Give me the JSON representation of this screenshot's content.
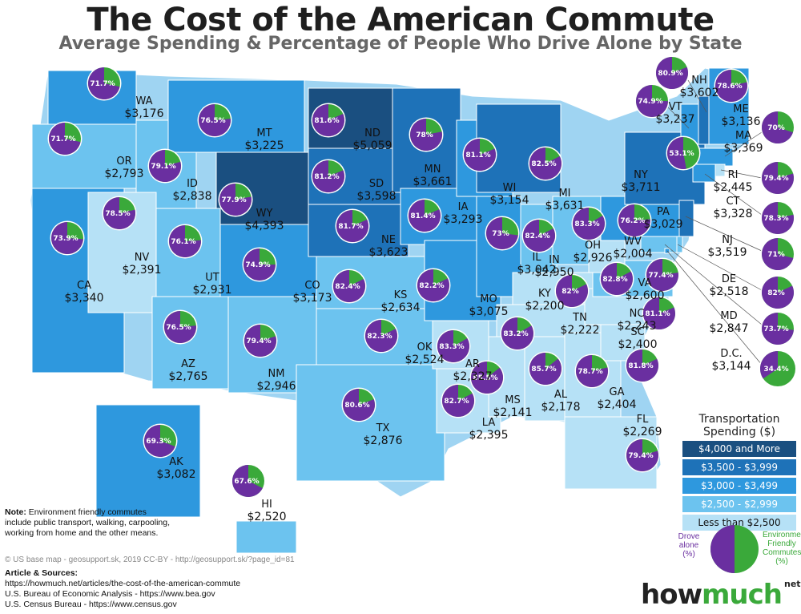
{
  "title": "The Cost of the American Commute",
  "subtitle": "Average Spending & Percentage of People Who Drive Alone by State",
  "colors": {
    "tier1": "#1a4f80",
    "tier2": "#1e72b8",
    "tier3": "#2e98de",
    "tier4": "#6cc3ef",
    "tier5": "#b6e1f6",
    "drove_alone": "#6a2fa0",
    "env_friendly": "#3aa93a"
  },
  "legend": {
    "title_line1": "Transportation",
    "title_line2": "Spending ($)",
    "tiers": [
      {
        "label": "$4,000 and More",
        "color": "#1a4f80",
        "text_color": "#ffffff"
      },
      {
        "label": "$3,500 - $3,999",
        "color": "#1e72b8",
        "text_color": "#ffffff"
      },
      {
        "label": "$3,000 - $3,499",
        "color": "#2e98de",
        "text_color": "#ffffff"
      },
      {
        "label": "$2,500 - $2,999",
        "color": "#6cc3ef",
        "text_color": "#ffffff"
      },
      {
        "label": "Less than $2,500",
        "color": "#b6e1f6",
        "text_color": "#111111"
      }
    ],
    "pie_left_line1": "Drove",
    "pie_left_line2": "alone",
    "pie_left_line3": "(%)",
    "pie_right_line1": "Environment",
    "pie_right_line2": "Friendly",
    "pie_right_line3": "Commutes",
    "pie_right_line4": "(%)"
  },
  "states": [
    {
      "abbr": "WA",
      "spending": "$3,176",
      "drove_alone": 71.7,
      "tier": 3
    },
    {
      "abbr": "OR",
      "spending": "$2,793",
      "drove_alone": 71.7,
      "tier": 4
    },
    {
      "abbr": "CA",
      "spending": "$3,340",
      "drove_alone": 73.9,
      "tier": 3
    },
    {
      "abbr": "ID",
      "spending": "$2,838",
      "drove_alone": 79.1,
      "tier": 4
    },
    {
      "abbr": "NV",
      "spending": "$2,391",
      "drove_alone": 78.5,
      "tier": 5
    },
    {
      "abbr": "MT",
      "spending": "$3,225",
      "drove_alone": 76.5,
      "tier": 3
    },
    {
      "abbr": "WY",
      "spending": "$4,393",
      "drove_alone": 77.9,
      "tier": 1
    },
    {
      "abbr": "UT",
      "spending": "$2,931",
      "drove_alone": 76.1,
      "tier": 4
    },
    {
      "abbr": "CO",
      "spending": "$3,173",
      "drove_alone": 74.9,
      "tier": 3
    },
    {
      "abbr": "AZ",
      "spending": "$2,765",
      "drove_alone": 76.5,
      "tier": 4
    },
    {
      "abbr": "NM",
      "spending": "$2,946",
      "drove_alone": 79.4,
      "tier": 4
    },
    {
      "abbr": "ND",
      "spending": "$5,059",
      "drove_alone": 81.6,
      "tier": 1
    },
    {
      "abbr": "SD",
      "spending": "$3,598",
      "drove_alone": 81.2,
      "tier": 2
    },
    {
      "abbr": "NE",
      "spending": "$3,623",
      "drove_alone": 81.7,
      "tier": 2
    },
    {
      "abbr": "KS",
      "spending": "$2,634",
      "drove_alone": 82.4,
      "tier": 4
    },
    {
      "abbr": "OK",
      "spending": "$2,524",
      "drove_alone": 82.3,
      "tier": 4
    },
    {
      "abbr": "TX",
      "spending": "$2,876",
      "drove_alone": 80.6,
      "tier": 4
    },
    {
      "abbr": "MN",
      "spending": "$3,661",
      "drove_alone": 78,
      "tier": 2
    },
    {
      "abbr": "IA",
      "spending": "$3,293",
      "drove_alone": 81.4,
      "tier": 3
    },
    {
      "abbr": "MO",
      "spending": "$3,075",
      "drove_alone": 82.2,
      "tier": 3
    },
    {
      "abbr": "AR",
      "spending": "$2,327",
      "drove_alone": 83.3,
      "tier": 5
    },
    {
      "abbr": "LA",
      "spending": "$2,395",
      "drove_alone": 82.7,
      "tier": 5
    },
    {
      "abbr": "WI",
      "spending": "$3,154",
      "drove_alone": 81.1,
      "tier": 3
    },
    {
      "abbr": "IL",
      "spending": "$3,042",
      "drove_alone": 73,
      "tier": 3
    },
    {
      "abbr": "MI",
      "spending": "$3,631",
      "drove_alone": 82.5,
      "tier": 2
    },
    {
      "abbr": "IN",
      "spending": "$2,950",
      "drove_alone": 82.4,
      "tier": 4
    },
    {
      "abbr": "OH",
      "spending": "$2,926",
      "drove_alone": 83.3,
      "tier": 4
    },
    {
      "abbr": "KY",
      "spending": "$2,200",
      "drove_alone": 82,
      "tier": 5
    },
    {
      "abbr": "TN",
      "spending": "$2,222",
      "drove_alone": 83.2,
      "tier": 5
    },
    {
      "abbr": "MS",
      "spending": "$2,141",
      "drove_alone": 85.5,
      "tier": 5
    },
    {
      "abbr": "AL",
      "spending": "$2,178",
      "drove_alone": 85.7,
      "tier": 5
    },
    {
      "abbr": "GA",
      "spending": "$2,404",
      "drove_alone": 78.7,
      "tier": 5
    },
    {
      "abbr": "FL",
      "spending": "$2,269",
      "drove_alone": 79.4,
      "tier": 5
    },
    {
      "abbr": "SC",
      "spending": "$2,400",
      "drove_alone": 81.8,
      "tier": 5
    },
    {
      "abbr": "NC",
      "spending": "$2,243",
      "drove_alone": 81.1,
      "tier": 5
    },
    {
      "abbr": "VA",
      "spending": "$2,600",
      "drove_alone": 77.4,
      "tier": 4
    },
    {
      "abbr": "WV",
      "spending": "$2,004",
      "drove_alone": 82.8,
      "tier": 5
    },
    {
      "abbr": "PA",
      "spending": "$3,029",
      "drove_alone": 76.2,
      "tier": 3
    },
    {
      "abbr": "NY",
      "spending": "$3,711",
      "drove_alone": 53.1,
      "tier": 2
    },
    {
      "abbr": "VT",
      "spending": "$3,237",
      "drove_alone": 74.9,
      "tier": 3
    },
    {
      "abbr": "NH",
      "spending": "$3,602",
      "drove_alone": 80.9,
      "tier": 2
    },
    {
      "abbr": "ME",
      "spending": "$3,136",
      "drove_alone": 78.6,
      "tier": 3
    },
    {
      "abbr": "MA",
      "spending": "$3,369",
      "drove_alone": 70,
      "tier": 3
    },
    {
      "abbr": "RI",
      "spending": "$2,445",
      "drove_alone": 79.4,
      "tier": 5
    },
    {
      "abbr": "CT",
      "spending": "$3,328",
      "drove_alone": 78.3,
      "tier": 3
    },
    {
      "abbr": "NJ",
      "spending": "$3,519",
      "drove_alone": 71,
      "tier": 2
    },
    {
      "abbr": "DE",
      "spending": "$2,518",
      "drove_alone": 82,
      "tier": 4
    },
    {
      "abbr": "MD",
      "spending": "$2,847",
      "drove_alone": 73.7,
      "tier": 4
    },
    {
      "abbr": "D.C.",
      "spending": "$3,144",
      "drove_alone": 34.4,
      "tier": 3
    },
    {
      "abbr": "AK",
      "spending": "$3,082",
      "drove_alone": 69.3,
      "tier": 3
    },
    {
      "abbr": "HI",
      "spending": "$2,520",
      "drove_alone": 67.6,
      "tier": 4
    }
  ],
  "note": {
    "label": "Note:",
    "text": "Environment friendly commutes include public transport, walking, carpooling, working from home and the other means."
  },
  "credit": "© US base map - geosupport.sk, 2019 CC-BY - http://geosupport.sk/?page_id=81",
  "sources": {
    "heading": "Article & Sources:",
    "lines": [
      "https://howmuch.net/articles/the-cost-of-the-american-commute",
      "U.S. Bureau of Economic Analysis - https://www.bea.gov",
      "U.S. Census Bureau - https://www.census.gov"
    ]
  },
  "logo": {
    "part1": "how",
    "part2": "much",
    "suffix": "net"
  }
}
